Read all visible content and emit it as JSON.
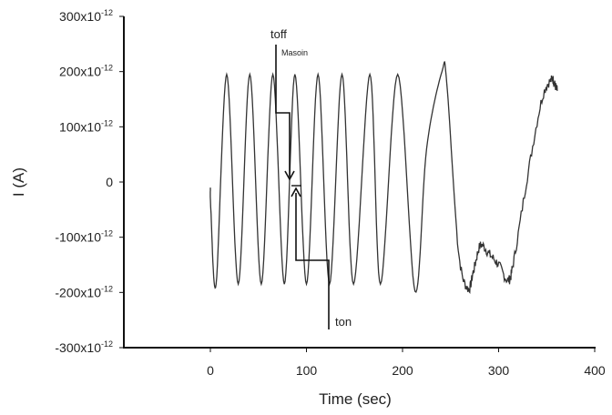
{
  "chart_data": {
    "type": "line",
    "title": "",
    "xlabel": "Time (sec)",
    "ylabel": "I (A)",
    "xlim": [
      -90,
      400
    ],
    "ylim": [
      -3e-10,
      3e-10
    ],
    "grid": false,
    "legend": null,
    "x_ticks": [
      0,
      100,
      200,
      300,
      400
    ],
    "x_tick_labels": [
      "0",
      "100",
      "200",
      "300",
      "400"
    ],
    "y_ticks": [
      3e-10,
      2e-10,
      1e-10,
      0,
      -1e-10,
      -2e-10,
      -3e-10
    ],
    "y_tick_labels": [
      {
        "base": "300x10",
        "exp": "-12"
      },
      {
        "base": "200x10",
        "exp": "-12"
      },
      {
        "base": "100x10",
        "exp": "-12"
      },
      {
        "base": "0",
        "exp": ""
      },
      {
        "base": "-100x10",
        "exp": "-12"
      },
      {
        "base": "-200x10",
        "exp": "-12"
      },
      {
        "base": "-300x10",
        "exp": "-12"
      }
    ],
    "series": [
      {
        "name": "I",
        "color": "#333333",
        "x": [
          0,
          0.5,
          6,
          17,
          29,
          41,
          53,
          65,
          77,
          88,
          100,
          112,
          124,
          137,
          149,
          166,
          177,
          195,
          213,
          225,
          241,
          246,
          258,
          268,
          274,
          281,
          290,
          300,
          310,
          316,
          330,
          345,
          355,
          358,
          361
        ],
        "y_pA": [
          -10,
          -50,
          -185,
          195,
          -185,
          195,
          -185,
          195,
          -185,
          195,
          -185,
          195,
          -185,
          195,
          -185,
          195,
          -185,
          195,
          -198,
          60,
          200,
          180,
          -120,
          -193,
          -160,
          -115,
          -130,
          -150,
          -178,
          -140,
          10,
          150,
          185,
          178,
          165
        ]
      }
    ],
    "annotations": [
      {
        "text": "toff",
        "x_sec": 80,
        "note": "arrow pointing down to trace near t=80s"
      },
      {
        "text": "Masoin",
        "x_sec": 80
      },
      {
        "text": "ton",
        "x_sec": 90,
        "note": "arrow pointing up to trace near t=90s"
      }
    ]
  }
}
